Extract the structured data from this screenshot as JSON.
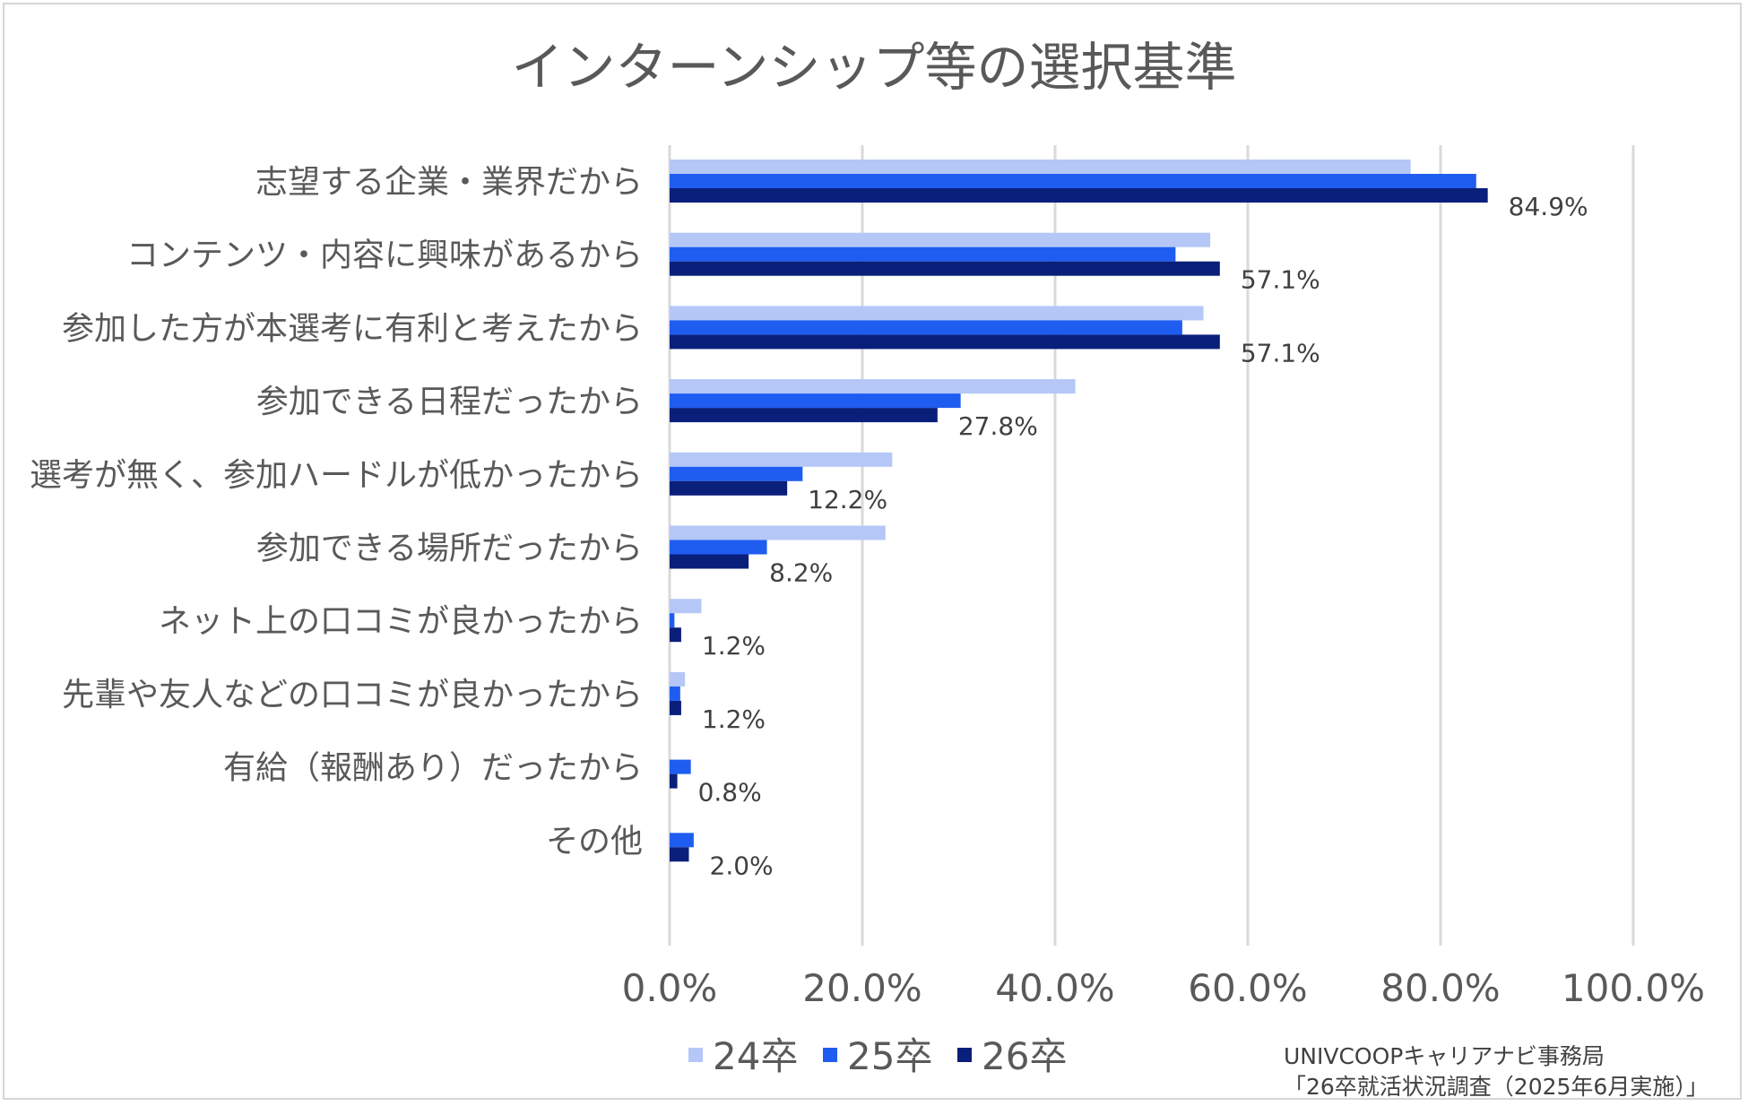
{
  "chart_data": {
    "type": "bar",
    "orientation": "horizontal",
    "title": "インターンシップ等の選択基準",
    "xlabel": "",
    "ylabel": "",
    "xlim": [
      0,
      100
    ],
    "x_ticks": [
      "0.0%",
      "20.0%",
      "40.0%",
      "60.0%",
      "80.0%",
      "100.0%"
    ],
    "grid": true,
    "legend_position": "bottom",
    "categories": [
      "志望する企業・業界だから",
      "コンテンツ・内容に興味があるから",
      "参加した方が本選考に有利と考えたから",
      "参加できる日程だったから",
      "選考が無く、参加ハードルが低かったから",
      "参加できる場所だったから",
      "ネット上の口コミが良かったから",
      "先輩や友人などの口コミが良かったから",
      "有給（報酬あり）だったから",
      "その他"
    ],
    "series": [
      {
        "name": "24卒",
        "color": "#b4c7f7",
        "values": [
          76.9,
          56.1,
          55.4,
          42.1,
          23.1,
          22.4,
          3.3,
          1.6,
          0.0,
          0.0
        ]
      },
      {
        "name": "25卒",
        "color": "#1f5cf0",
        "values": [
          83.7,
          52.5,
          53.2,
          30.2,
          13.8,
          10.1,
          0.5,
          1.1,
          2.2,
          2.5
        ]
      },
      {
        "name": "26卒",
        "color": "#0a1f7a",
        "values": [
          84.9,
          57.1,
          57.1,
          27.8,
          12.2,
          8.2,
          1.2,
          1.2,
          0.8,
          2.0
        ]
      }
    ],
    "data_labels": [
      "84.9%",
      "57.1%",
      "57.1%",
      "27.8%",
      "12.2%",
      "8.2%",
      "1.2%",
      "1.2%",
      "0.8%",
      "2.0%"
    ]
  },
  "source": {
    "line1": "UNIVCOOPキャリアナビ事務局",
    "line2": "「26卒就活状況調査（2025年6月実施）」"
  }
}
